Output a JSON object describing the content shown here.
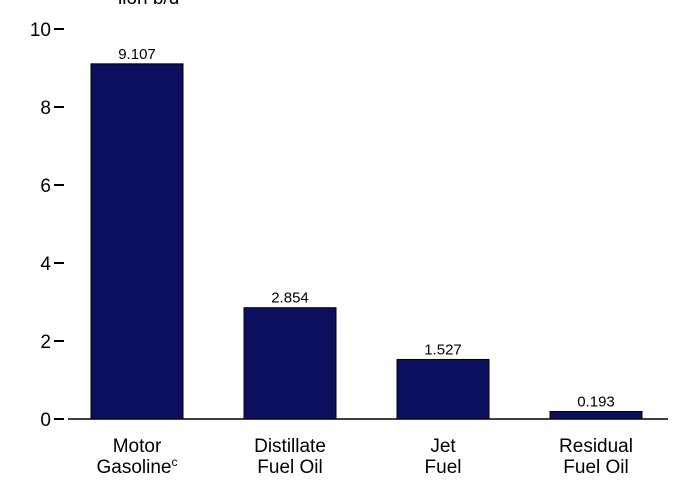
{
  "chart_data": {
    "type": "bar",
    "y_unit_label": "lion b/d",
    "categories": [
      {
        "lines": [
          "Motor",
          "Gasoline"
        ],
        "superscript": "c"
      },
      {
        "lines": [
          "Distillate",
          "Fuel Oil"
        ],
        "superscript": ""
      },
      {
        "lines": [
          "Jet",
          "Fuel"
        ],
        "superscript": ""
      },
      {
        "lines": [
          "Residual",
          "Fuel Oil"
        ],
        "superscript": ""
      }
    ],
    "values": [
      9.107,
      2.854,
      1.527,
      0.193
    ],
    "value_labels": [
      "9.107",
      "2.854",
      "1.527",
      "0.193"
    ],
    "ylim": [
      0,
      10
    ],
    "yticks": [
      0,
      2,
      4,
      6,
      8,
      10
    ],
    "bar_color": "#0b0f5e",
    "bar_edge_color": "#000000",
    "axis_color": "#000000"
  }
}
